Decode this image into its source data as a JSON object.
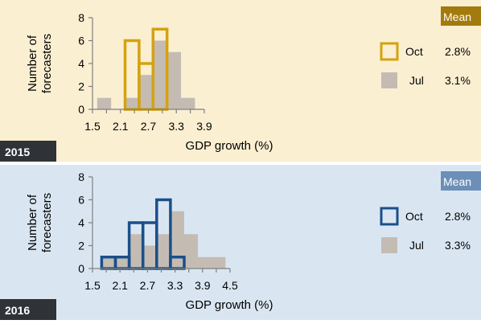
{
  "colors": {
    "panel_2015_bg": "#fbefd2",
    "panel_2016_bg": "#d9e6f2",
    "oct_2015": "#d4a20f",
    "oct_2016": "#1a4f8a",
    "jul_fill": "#c4bcb3",
    "mean_2015": "#a37a0c",
    "mean_2016": "#6b8fb8",
    "year_tag": "#2f3337"
  },
  "chart_data": [
    {
      "type": "bar",
      "year_label": "2015",
      "xlabel": "GDP growth (%)",
      "ylabel": "Number of forecasters",
      "ylabel_lines": [
        "Number of",
        "forecasters"
      ],
      "xlim": [
        1.5,
        3.9
      ],
      "ylim": [
        0,
        8
      ],
      "xticks": [
        "1.5",
        "2.1",
        "2.7",
        "3.3",
        "3.9"
      ],
      "yticks": [
        "0",
        "2",
        "4",
        "6",
        "8"
      ],
      "legend_header": "Mean",
      "series": [
        {
          "name": "Jul",
          "mean": "3.1%",
          "style": "filled",
          "bins": [
            {
              "x0": 1.6,
              "x1": 1.9,
              "value": 1
            },
            {
              "x0": 2.2,
              "x1": 2.5,
              "value": 1
            },
            {
              "x0": 2.5,
              "x1": 2.8,
              "value": 3
            },
            {
              "x0": 2.8,
              "x1": 3.1,
              "value": 6
            },
            {
              "x0": 3.1,
              "x1": 3.4,
              "value": 5
            },
            {
              "x0": 3.4,
              "x1": 3.7,
              "value": 1
            }
          ]
        },
        {
          "name": "Oct",
          "mean": "2.8%",
          "style": "outline",
          "bins": [
            {
              "x0": 2.2,
              "x1": 2.5,
              "value": 6
            },
            {
              "x0": 2.5,
              "x1": 2.8,
              "value": 4
            },
            {
              "x0": 2.8,
              "x1": 3.1,
              "value": 7
            }
          ]
        }
      ]
    },
    {
      "type": "bar",
      "year_label": "2016",
      "xlabel": "GDP growth (%)",
      "ylabel": "Number of forecasters",
      "ylabel_lines": [
        "Number of",
        "forecasters"
      ],
      "xlim": [
        1.5,
        4.5
      ],
      "ylim": [
        0,
        8
      ],
      "xticks": [
        "1.5",
        "2.1",
        "2.7",
        "3.3",
        "3.9",
        "4.5"
      ],
      "yticks": [
        "0",
        "2",
        "4",
        "6",
        "8"
      ],
      "legend_header": "Mean",
      "series": [
        {
          "name": "Jul",
          "mean": "3.3%",
          "style": "filled",
          "bins": [
            {
              "x0": 1.7,
              "x1": 2.0,
              "value": 1
            },
            {
              "x0": 2.0,
              "x1": 2.3,
              "value": 1
            },
            {
              "x0": 2.3,
              "x1": 2.6,
              "value": 3
            },
            {
              "x0": 2.6,
              "x1": 2.9,
              "value": 2
            },
            {
              "x0": 2.9,
              "x1": 3.2,
              "value": 3
            },
            {
              "x0": 3.2,
              "x1": 3.5,
              "value": 5
            },
            {
              "x0": 3.5,
              "x1": 3.8,
              "value": 3
            },
            {
              "x0": 3.8,
              "x1": 4.4,
              "value": 1
            }
          ]
        },
        {
          "name": "Oct",
          "mean": "2.8%",
          "style": "outline",
          "bins": [
            {
              "x0": 1.7,
              "x1": 2.0,
              "value": 1
            },
            {
              "x0": 2.0,
              "x1": 2.3,
              "value": 1
            },
            {
              "x0": 2.3,
              "x1": 2.6,
              "value": 4
            },
            {
              "x0": 2.6,
              "x1": 2.9,
              "value": 4
            },
            {
              "x0": 2.9,
              "x1": 3.2,
              "value": 6
            },
            {
              "x0": 3.2,
              "x1": 3.5,
              "value": 1
            }
          ]
        }
      ]
    }
  ]
}
